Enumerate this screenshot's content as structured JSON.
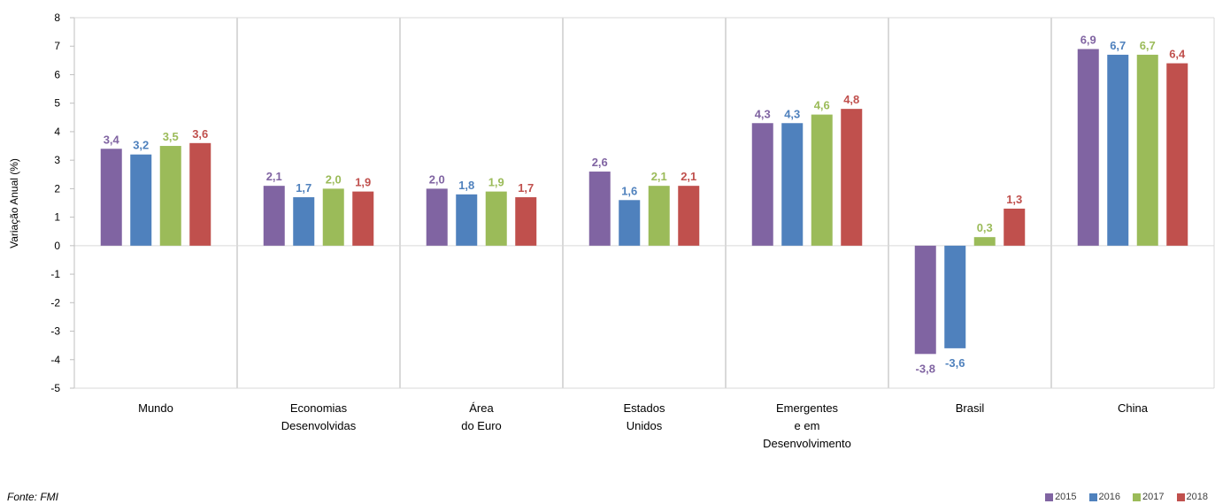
{
  "chart_data": {
    "type": "bar",
    "ylabel": "Variação Anual (%)",
    "ylim": [
      -5,
      8
    ],
    "yticks": [
      8,
      7,
      6,
      5,
      4,
      3,
      2,
      1,
      0,
      -1,
      -2,
      -3,
      -4,
      -5
    ],
    "grid": "vertical separators between categories",
    "legend_position": "bottom-right",
    "categories": [
      [
        "Mundo"
      ],
      [
        "Economias",
        "Desenvolvidas"
      ],
      [
        "Área",
        "do Euro"
      ],
      [
        "Estados",
        "Unidos"
      ],
      [
        "Emergentes",
        "e em",
        "Desenvolvimento"
      ],
      [
        "Brasil"
      ],
      [
        "China"
      ]
    ],
    "series": [
      {
        "name": "2015",
        "color": "#8064A2",
        "values": [
          3.4,
          2.1,
          2.0,
          2.6,
          4.3,
          -3.8,
          6.9
        ],
        "labels": [
          "3,4",
          "2,1",
          "2,0",
          "2,6",
          "4,3",
          "-3,8",
          "6,9"
        ]
      },
      {
        "name": "2016",
        "color": "#4F81BD",
        "values": [
          3.2,
          1.7,
          1.8,
          1.6,
          4.3,
          -3.6,
          6.7
        ],
        "labels": [
          "3,2",
          "1,7",
          "1,8",
          "1,6",
          "4,3",
          "-3,6",
          "6,7"
        ]
      },
      {
        "name": "2017",
        "color": "#9BBB59",
        "values": [
          3.5,
          2.0,
          1.9,
          2.1,
          4.6,
          0.3,
          6.7
        ],
        "labels": [
          "3,5",
          "2,0",
          "1,9",
          "2,1",
          "4,6",
          "0,3",
          "6,7"
        ]
      },
      {
        "name": "2018",
        "color": "#C0504D",
        "values": [
          3.6,
          1.9,
          1.7,
          2.1,
          4.8,
          1.3,
          6.4
        ],
        "labels": [
          "3,6",
          "1,9",
          "1,7",
          "2,1",
          "4,8",
          "1,3",
          "6,4"
        ]
      }
    ]
  },
  "footer": {
    "source": "Fonte: FMI"
  }
}
